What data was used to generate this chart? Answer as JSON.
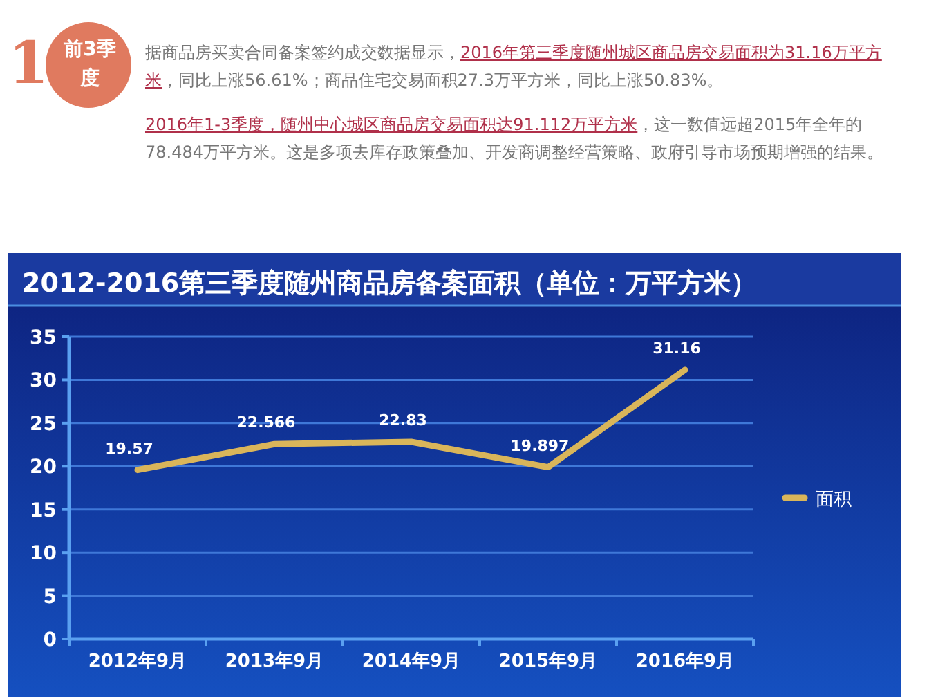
{
  "chart_data": {
    "type": "line",
    "title": "2012-2016第三季度随州商品房备案面积（单位：万平方米）",
    "annotations": [
      "1",
      "前3季度",
      "据商品房买卖合同备案签约成交数据显示，",
      "2016年第三季度随州城区商品房交易面积为31.16万平方米",
      "，同比上涨56.61%；商品住宅交易面积27.3万平方米，同比上涨50.83%。",
      "2016年1-3季度，随州中心城区商品房交易面积达91.112万平方米",
      "，这一数值远超2015年全年的78.484万平方米。这是多项去库存政策叠加、开发商调整经营策略、政府引导市场预期增强的结果。"
    ],
    "categories": [
      "2012年9月",
      "2013年9月",
      "2014年9月",
      "2015年9月",
      "2016年9月"
    ],
    "series": [
      {
        "name": "面积",
        "color": "#d9b55a",
        "values": [
          19.57,
          22.566,
          22.83,
          19.897,
          31.16
        ]
      }
    ],
    "ylim": [
      0,
      35
    ],
    "yticks": [
      0,
      5,
      10,
      15,
      20,
      25,
      30,
      35
    ],
    "grid": "y",
    "legend": "right",
    "data_labels": true
  }
}
